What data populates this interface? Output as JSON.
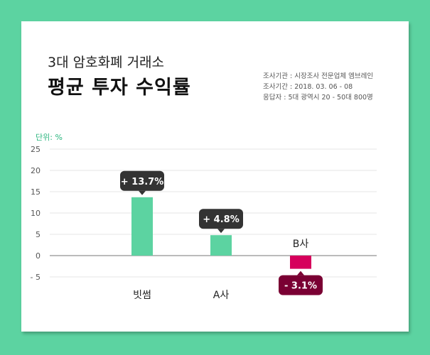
{
  "header": {
    "subtitle": "3대 암호화폐 거래소",
    "title": "평균 투자 수익률"
  },
  "survey": {
    "org": "조사기관 : 시장조사 전문업체 엠브레인",
    "period": "조사기간 : 2018. 03. 06  -  08",
    "respondents": "응답자 : 5대 광역시 20 - 50대 800명"
  },
  "colors": {
    "background": "#5cd3a1",
    "bar_positive": "#5cd3a1",
    "bar_negative": "#d6005c",
    "callout_positive": "#333333",
    "callout_negative": "#7a0033"
  },
  "chart_data": {
    "type": "bar",
    "unit_label": "단위: %",
    "categories": [
      "빗썸",
      "A사",
      "B사"
    ],
    "values": [
      13.7,
      4.8,
      -3.1
    ],
    "data_labels": [
      "+ 13.7%",
      "+ 4.8%",
      "- 3.1%"
    ],
    "yticks": [
      "25",
      "20",
      "15",
      "10",
      "5",
      "0",
      "- 5"
    ],
    "ylim": [
      -5,
      25
    ],
    "grid": true
  }
}
